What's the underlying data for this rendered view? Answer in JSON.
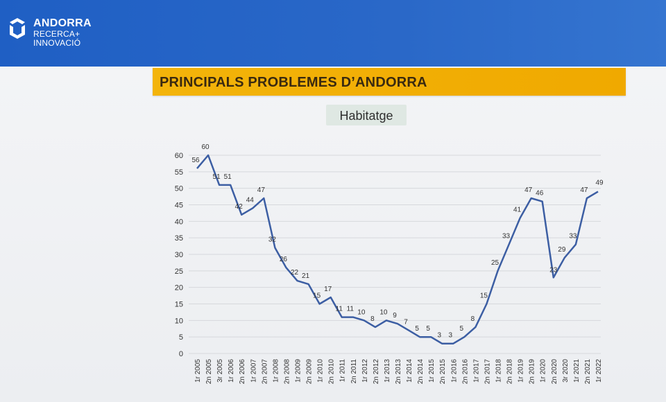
{
  "header": {
    "brand_name": "ANDORRA",
    "brand_line2": "RECERCA+",
    "brand_line3": "INNOVACIÓ",
    "logo_icon": "andorra-recerca-logo-icon",
    "background_color": "#2a68c8"
  },
  "slide": {
    "title": "PRINCIPALS PROBLEMES D’ANDORRA",
    "title_bg_color": "#f3b40a",
    "subtitle": "Habitatge"
  },
  "chart_data": {
    "type": "line",
    "title": "Habitatge",
    "xlabel": "",
    "ylabel": "",
    "ylim": [
      0,
      60
    ],
    "yticks": [
      0,
      5,
      10,
      15,
      20,
      25,
      30,
      35,
      40,
      45,
      50,
      55,
      60
    ],
    "grid": true,
    "line_color": "#3c5ea3",
    "categories": [
      "1r 2005",
      "2n 2005",
      "3r 2005",
      "1r 2006",
      "2n 2006",
      "1r 2007",
      "2n 2007",
      "1r 2008",
      "2n 2008",
      "1r 2009",
      "2n 2009",
      "1r 2010",
      "2n 2010",
      "1r 2011",
      "2n 2011",
      "1r 2012",
      "2n 2012",
      "1r 2013",
      "2n 2013",
      "1r 2014",
      "2n 2014",
      "1r 2015",
      "2n 2015",
      "1r 2016",
      "2n 2016",
      "1r 2017",
      "2n 2017",
      "1r 2018",
      "2n 2018",
      "1r 2019",
      "2n 2019",
      "1r 2020",
      "2n 2020",
      "3r 2020",
      "1r 2021",
      "2n 2021",
      "1r 2022"
    ],
    "series": [
      {
        "values": [
          56,
          60,
          51,
          51,
          42,
          44,
          47,
          32,
          26,
          22,
          21,
          15,
          17,
          11,
          11,
          10,
          8,
          10,
          9,
          7,
          5,
          5,
          3,
          3,
          5,
          8,
          15,
          25,
          33,
          41,
          47,
          46,
          23,
          29,
          33,
          47,
          49
        ]
      }
    ]
  }
}
